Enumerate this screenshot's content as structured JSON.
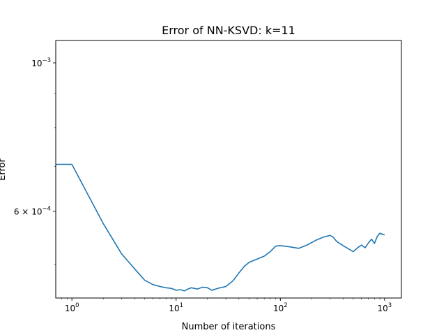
{
  "chart_data": {
    "type": "line",
    "title": "Error of NN-KSVD: k=11",
    "xlabel": "Number of iterations",
    "ylabel": "Error",
    "x_scale": "log",
    "y_scale": "log",
    "xlim": [
      0.7,
      1450
    ],
    "ylim": [
      0.000445,
      0.00108
    ],
    "grid": false,
    "legend": "none",
    "line_color": "#1f77b4",
    "x_ticks": [
      {
        "base": "10",
        "exp": "0",
        "value": 1
      },
      {
        "base": "10",
        "exp": "1",
        "value": 10
      },
      {
        "base": "10",
        "exp": "2",
        "value": 100
      },
      {
        "base": "10",
        "exp": "3",
        "value": 1000
      }
    ],
    "y_ticks": [
      {
        "mant": "6 × ",
        "base": "10",
        "exp": "−4",
        "value": 0.0006
      },
      {
        "mant": "",
        "base": "10",
        "exp": "−3",
        "value": 0.001
      }
    ],
    "series": [
      {
        "points": [
          [
            0.7,
            0.000705
          ],
          [
            1,
            0.000705
          ],
          [
            2,
            0.000575
          ],
          [
            3,
            0.000518
          ],
          [
            4,
            0.000492
          ],
          [
            5,
            0.000473
          ],
          [
            6,
            0.000466
          ],
          [
            7,
            0.000463
          ],
          [
            8,
            0.000461
          ],
          [
            9,
            0.00046
          ],
          [
            10,
            0.000457
          ],
          [
            11,
            0.000458
          ],
          [
            12,
            0.000456
          ],
          [
            13,
            0.000459
          ],
          [
            14,
            0.000461
          ],
          [
            16,
            0.000459
          ],
          [
            18,
            0.000462
          ],
          [
            20,
            0.000461
          ],
          [
            22,
            0.000457
          ],
          [
            25,
            0.00046
          ],
          [
            30,
            0.000463
          ],
          [
            35,
            0.000472
          ],
          [
            40,
            0.000485
          ],
          [
            45,
            0.000496
          ],
          [
            50,
            0.000503
          ],
          [
            60,
            0.000509
          ],
          [
            70,
            0.000514
          ],
          [
            80,
            0.000522
          ],
          [
            90,
            0.000532
          ],
          [
            100,
            0.000533
          ],
          [
            120,
            0.000531
          ],
          [
            150,
            0.000528
          ],
          [
            180,
            0.000534
          ],
          [
            220,
            0.000543
          ],
          [
            260,
            0.000549
          ],
          [
            300,
            0.000552
          ],
          [
            320,
            0.000549
          ],
          [
            350,
            0.00054
          ],
          [
            400,
            0.000533
          ],
          [
            450,
            0.000527
          ],
          [
            500,
            0.000522
          ],
          [
            550,
            0.000529
          ],
          [
            600,
            0.000534
          ],
          [
            650,
            0.000529
          ],
          [
            700,
            0.000538
          ],
          [
            750,
            0.000545
          ],
          [
            800,
            0.000537
          ],
          [
            850,
            0.00055
          ],
          [
            900,
            0.000556
          ],
          [
            1000,
            0.000553
          ]
        ]
      }
    ]
  }
}
